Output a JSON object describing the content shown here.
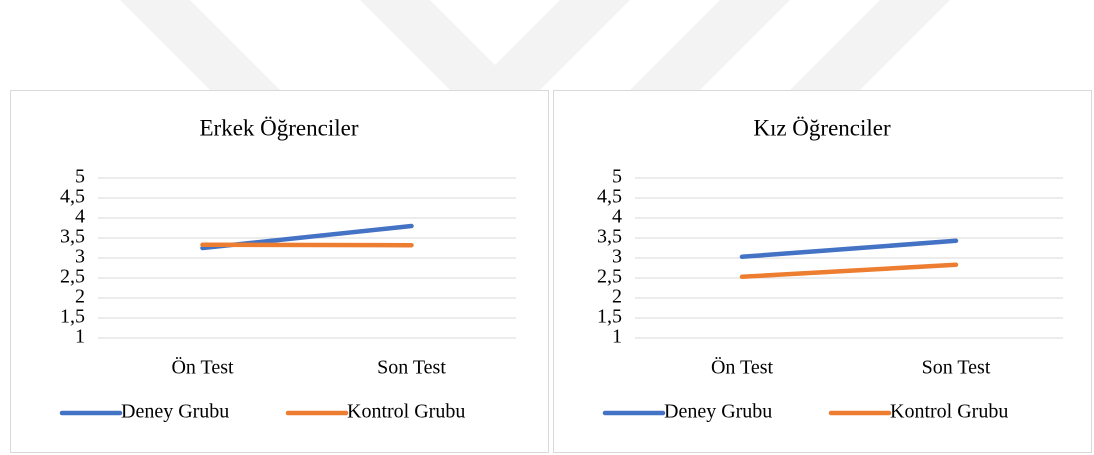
{
  "chart_data": [
    {
      "type": "line",
      "title": "Erkek Öğrenciler",
      "categories": [
        "Ön Test",
        "Son Test"
      ],
      "series": [
        {
          "name": "Deney Grubu",
          "color": "#4472c4",
          "values": [
            3.25,
            3.8
          ]
        },
        {
          "name": "Kontrol Grubu",
          "color": "#ed7d31",
          "values": [
            3.33,
            3.32
          ]
        }
      ],
      "ylim": [
        1,
        5
      ],
      "yticks": [
        1,
        {
          "value": 1.5,
          "label": "1,5"
        },
        2,
        {
          "value": 2.5,
          "label": "2,5"
        },
        3,
        {
          "value": 3.5,
          "label": "3,5"
        },
        4,
        {
          "value": 4.5,
          "label": "4,5"
        },
        5
      ],
      "grid": true,
      "legend": "bottom"
    },
    {
      "type": "line",
      "title": "Kız Öğrenciler",
      "categories": [
        "Ön Test",
        "Son Test"
      ],
      "series": [
        {
          "name": "Deney Grubu",
          "color": "#4472c4",
          "values": [
            3.03,
            3.43
          ]
        },
        {
          "name": "Kontrol Grubu",
          "color": "#ed7d31",
          "values": [
            2.53,
            2.83
          ]
        }
      ],
      "ylim": [
        1,
        5
      ],
      "yticks": [
        1,
        {
          "value": 1.5,
          "label": "1,5"
        },
        2,
        {
          "value": 2.5,
          "label": "2,5"
        },
        3,
        {
          "value": 3.5,
          "label": "3,5"
        },
        4,
        {
          "value": 4.5,
          "label": "4,5"
        },
        5
      ],
      "grid": true,
      "legend": "bottom"
    }
  ]
}
